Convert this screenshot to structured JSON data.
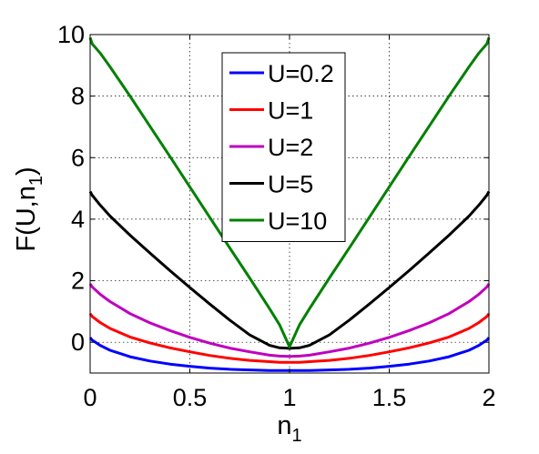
{
  "chart_data": {
    "type": "line",
    "xlabel": "n",
    "xlabel_sub": "1",
    "ylabel_main": "F(U,n",
    "ylabel_sub": "1",
    "ylabel_close": ")",
    "xlim": [
      0,
      2
    ],
    "ylim": [
      -1,
      10
    ],
    "xticks": [
      0,
      0.5,
      1,
      1.5,
      2
    ],
    "xtick_labels": [
      "0",
      "0.5",
      "1",
      "1.5",
      "2"
    ],
    "yticks": [
      0,
      2,
      4,
      6,
      8,
      10
    ],
    "ytick_labels": [
      "0",
      "2",
      "4",
      "6",
      "8",
      "10"
    ],
    "grid": true,
    "legend_position": "top-right",
    "x": [
      0,
      0.01,
      0.05,
      0.1,
      0.2,
      0.3,
      0.4,
      0.5,
      0.6,
      0.7,
      0.8,
      0.9,
      0.95,
      1.0,
      1.05,
      1.1,
      1.2,
      1.3,
      1.4,
      1.5,
      1.6,
      1.7,
      1.8,
      1.9,
      1.95,
      1.99,
      2.0
    ],
    "series": [
      {
        "name": "U=0.2",
        "color": "#0000ff",
        "values": [
          0.15,
          0.07,
          -0.1,
          -0.26,
          -0.47,
          -0.61,
          -0.71,
          -0.78,
          -0.84,
          -0.88,
          -0.9,
          -0.92,
          -0.92,
          -0.92,
          -0.92,
          -0.92,
          -0.9,
          -0.88,
          -0.84,
          -0.78,
          -0.71,
          -0.61,
          -0.47,
          -0.26,
          -0.1,
          0.07,
          0.15
        ]
      },
      {
        "name": "U=1",
        "color": "#ff0000",
        "values": [
          0.93,
          0.84,
          0.64,
          0.45,
          0.17,
          -0.02,
          -0.18,
          -0.31,
          -0.43,
          -0.52,
          -0.59,
          -0.63,
          -0.65,
          -0.65,
          -0.65,
          -0.63,
          -0.59,
          -0.52,
          -0.43,
          -0.31,
          -0.18,
          -0.02,
          0.17,
          0.45,
          0.64,
          0.84,
          0.93
        ]
      },
      {
        "name": "U=2",
        "color": "#bf00bf",
        "values": [
          1.9,
          1.8,
          1.56,
          1.32,
          0.93,
          0.63,
          0.38,
          0.16,
          -0.03,
          -0.19,
          -0.31,
          -0.42,
          -0.45,
          -0.46,
          -0.45,
          -0.42,
          -0.31,
          -0.19,
          -0.03,
          0.16,
          0.38,
          0.63,
          0.93,
          1.32,
          1.56,
          1.8,
          1.9
        ]
      },
      {
        "name": "U=5",
        "color": "#000000",
        "values": [
          4.9,
          4.78,
          4.46,
          4.1,
          3.48,
          2.9,
          2.33,
          1.78,
          1.24,
          0.72,
          0.24,
          -0.1,
          -0.18,
          -0.2,
          -0.18,
          -0.1,
          0.24,
          0.72,
          1.24,
          1.78,
          2.33,
          2.9,
          3.48,
          4.1,
          4.46,
          4.78,
          4.9
        ]
      },
      {
        "name": "U=10",
        "color": "#008000",
        "values": [
          9.9,
          9.7,
          9.4,
          8.95,
          8.0,
          7.02,
          6.04,
          5.05,
          4.06,
          3.07,
          2.09,
          1.09,
          0.57,
          -0.15,
          0.57,
          1.09,
          2.09,
          3.07,
          4.06,
          5.05,
          6.04,
          7.02,
          8.0,
          8.95,
          9.4,
          9.7,
          9.9
        ]
      }
    ]
  }
}
